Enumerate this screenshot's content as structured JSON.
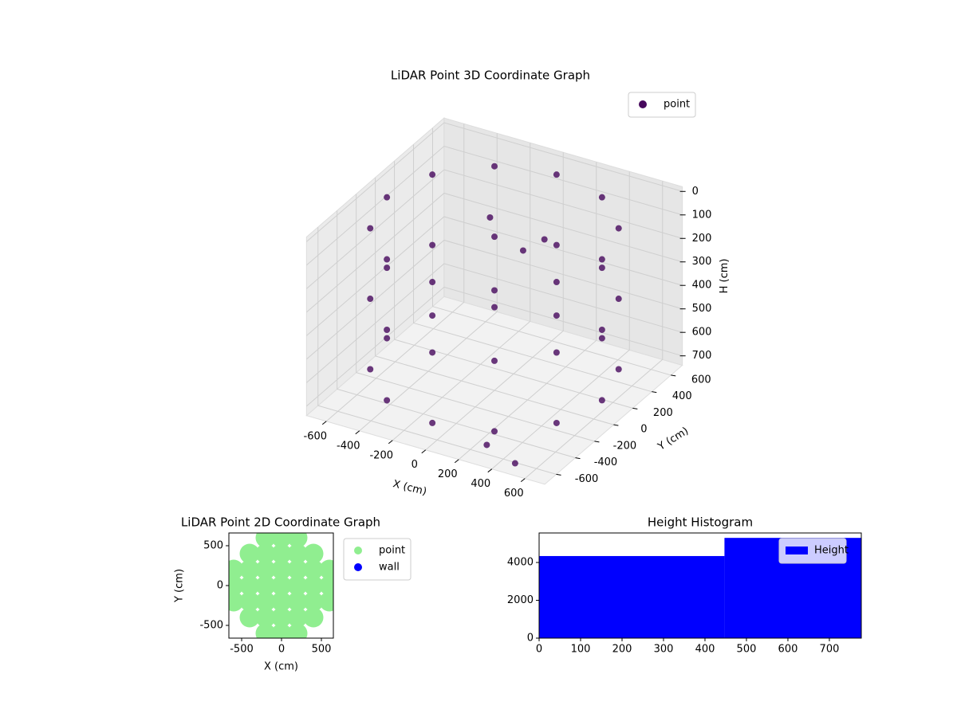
{
  "chart_data": [
    {
      "type": "scatter3d",
      "title": "LiDAR Point 3D Coordinate Graph",
      "xlabel": "X (cm)",
      "ylabel": "Y (cm)",
      "zlabel": "H (cm)",
      "xlim": [
        -720,
        720
      ],
      "ylim": [
        -720,
        720
      ],
      "zlim": [
        740,
        -20
      ],
      "xticks": [
        -600,
        -400,
        -200,
        0,
        200,
        400,
        600
      ],
      "yticks": [
        -600,
        -400,
        -200,
        0,
        200,
        400,
        600
      ],
      "zticks": [
        0,
        100,
        200,
        300,
        400,
        500,
        600,
        700
      ],
      "grid": true,
      "legend": "upper right",
      "series": [
        {
          "name": "point",
          "color": "#46085c",
          "x": [
            650,
            563,
            325,
            0,
            -325,
            -563,
            -650,
            -563,
            -325,
            0,
            325,
            563,
            650,
            563,
            325,
            0,
            -325,
            -563,
            -650,
            -563,
            -325,
            0,
            325,
            563,
            650,
            563,
            325,
            0,
            -325,
            -563,
            -650,
            -563,
            -325,
            0,
            325,
            563,
            -200,
            100,
            0,
            300,
            500
          ],
          "y": [
            0,
            325,
            563,
            650,
            563,
            325,
            0,
            -325,
            -563,
            -650,
            -563,
            -325,
            0,
            325,
            563,
            650,
            563,
            325,
            0,
            -325,
            -563,
            -650,
            -563,
            -325,
            0,
            325,
            563,
            650,
            563,
            325,
            0,
            -325,
            -563,
            -650,
            -563,
            -325,
            300,
            350,
            300,
            -600,
            -650
          ],
          "h": [
            50,
            50,
            50,
            50,
            50,
            50,
            50,
            50,
            50,
            50,
            50,
            50,
            350,
            350,
            350,
            350,
            350,
            350,
            350,
            350,
            350,
            350,
            350,
            350,
            650,
            650,
            650,
            650,
            650,
            650,
            650,
            650,
            650,
            650,
            650,
            650,
            150,
            200,
            250,
            700,
            720
          ]
        }
      ]
    },
    {
      "type": "scatter",
      "title": "LiDAR Point 2D Coordinate Graph",
      "xlabel": "X (cm)",
      "ylabel": "Y (cm)",
      "xlim": [
        -660,
        650
      ],
      "ylim": [
        -660,
        660
      ],
      "xticks": [
        -500,
        0,
        500
      ],
      "yticks": [
        -500,
        0,
        500
      ],
      "legend": "outside right",
      "series": [
        {
          "name": "point",
          "color": "#90ee90",
          "x": [
            -200,
            0,
            200,
            -400,
            -200,
            0,
            200,
            400,
            -600,
            -400,
            -200,
            0,
            200,
            400,
            600,
            -600,
            -400,
            -200,
            0,
            200,
            400,
            600,
            -600,
            -400,
            -200,
            0,
            200,
            400,
            600,
            -400,
            -200,
            0,
            200,
            400,
            -200,
            0,
            200
          ],
          "y": [
            600,
            600,
            600,
            400,
            400,
            400,
            400,
            400,
            200,
            200,
            200,
            200,
            200,
            200,
            200,
            0,
            0,
            0,
            0,
            0,
            0,
            0,
            -200,
            -200,
            -200,
            -200,
            -200,
            -200,
            -200,
            -400,
            -400,
            -400,
            -400,
            -400,
            -600,
            -600,
            -600
          ]
        },
        {
          "name": "wall",
          "color": "#0000ff",
          "x": [],
          "y": []
        }
      ]
    },
    {
      "type": "histogram",
      "title": "Height Histogram",
      "bins": [
        0,
        447,
        777
      ],
      "xlim": [
        0,
        777
      ],
      "ylim": [
        0,
        5560
      ],
      "xticks": [
        0,
        100,
        200,
        300,
        400,
        500,
        600,
        700
      ],
      "yticks": [
        0,
        2000,
        4000
      ],
      "legend": "upper right",
      "series": [
        {
          "name": "Height",
          "color": "#0000ff",
          "values": [
            4340,
            5300
          ]
        }
      ]
    }
  ]
}
